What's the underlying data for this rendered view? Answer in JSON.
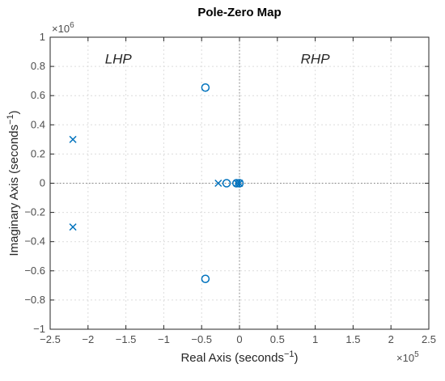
{
  "chart_data": {
    "type": "scatter",
    "title": "Pole-Zero Map",
    "xlabel": "Real Axis (seconds",
    "ylabel": "Imaginary Axis (seconds",
    "label_exponent": "−1",
    "x_multiplier": {
      "base": "×10",
      "exp": "5"
    },
    "y_multiplier": {
      "base": "×10",
      "exp": "6"
    },
    "xlim": [
      -2.5,
      2.5
    ],
    "ylim": [
      -1,
      1
    ],
    "x_ticks": [
      -2.5,
      -2,
      -1.5,
      -1,
      -0.5,
      0,
      0.5,
      1,
      1.5,
      2,
      2.5
    ],
    "y_ticks": [
      -1,
      -0.8,
      -0.6,
      -0.4,
      -0.2,
      0,
      0.2,
      0.4,
      0.6,
      0.8,
      1
    ],
    "x_tick_labels": [
      "−2.5",
      "−2",
      "−1.5",
      "−1",
      "−0.5",
      "0",
      "0.5",
      "1",
      "1.5",
      "2",
      "2.5"
    ],
    "y_tick_labels": [
      "−1",
      "−0.8",
      "−0.6",
      "−0.4",
      "−0.2",
      "0",
      "0.2",
      "0.4",
      "0.6",
      "0.8",
      "1"
    ],
    "grid": true,
    "region_labels": {
      "left": "LHP",
      "right": "RHP"
    },
    "series": [
      {
        "kind": "poles",
        "marker": "x",
        "color": "#0072BD",
        "points": [
          [
            -2.2,
            0.3
          ],
          [
            -2.2,
            -0.3
          ],
          [
            -0.28,
            0
          ],
          [
            -0.03,
            0
          ],
          [
            0,
            0
          ]
        ]
      },
      {
        "kind": "zeros",
        "marker": "o",
        "color": "#0072BD",
        "points": [
          [
            -0.45,
            0.655
          ],
          [
            -0.45,
            -0.655
          ],
          [
            -0.17,
            0
          ],
          [
            -0.04,
            0
          ],
          [
            0,
            0
          ]
        ]
      }
    ]
  }
}
